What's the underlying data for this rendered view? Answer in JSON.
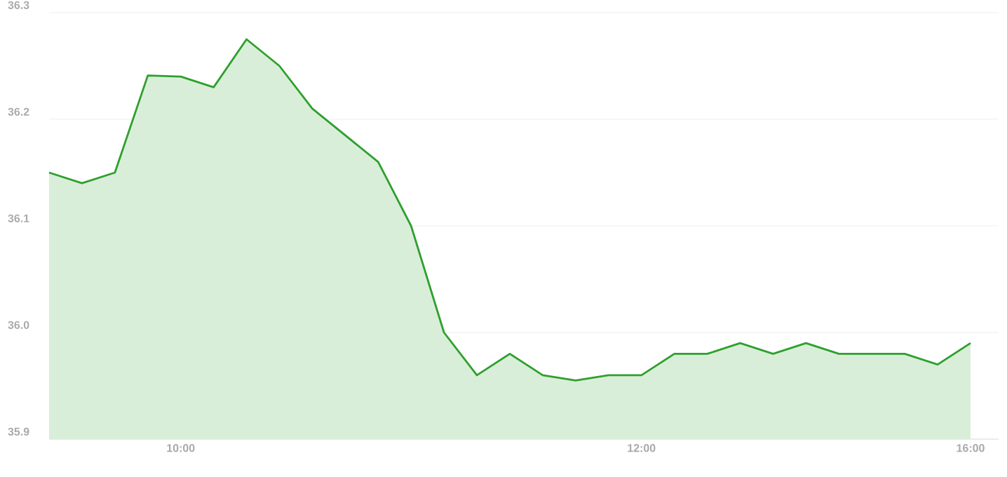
{
  "chart_data": {
    "type": "area",
    "color": "#2ea02e",
    "grid": "y",
    "categories": [
      null,
      null,
      null,
      null,
      "10:00",
      null,
      null,
      null,
      null,
      null,
      null,
      null,
      null,
      null,
      null,
      null,
      null,
      null,
      "12:00",
      null,
      null,
      null,
      null,
      null,
      null,
      null,
      null,
      null,
      "16:00"
    ],
    "values": [
      36.15,
      36.14,
      36.15,
      36.241,
      36.24,
      36.23,
      36.275,
      36.25,
      36.21,
      36.185,
      36.16,
      36.1,
      36.0,
      35.96,
      35.98,
      35.96,
      35.955,
      35.96,
      35.96,
      35.98,
      35.98,
      35.99,
      35.98,
      35.99,
      35.98,
      35.98,
      35.98,
      35.97,
      35.99
    ],
    "ylim": [
      35.9,
      36.3
    ],
    "yticks": [
      {
        "value": 35.9,
        "label": "35.9"
      },
      {
        "value": 36.0,
        "label": "36.0"
      },
      {
        "value": 36.1,
        "label": "36.1"
      },
      {
        "value": 36.2,
        "label": "36.2"
      },
      {
        "value": 36.3,
        "label": "36.3"
      }
    ]
  }
}
